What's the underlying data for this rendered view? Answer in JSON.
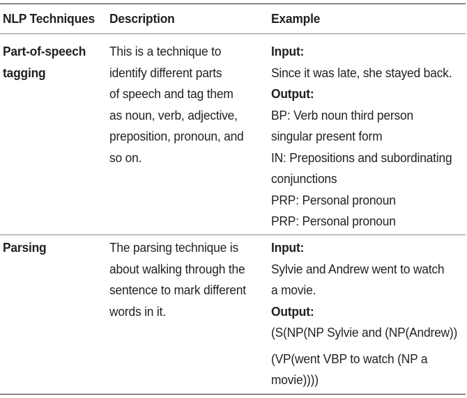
{
  "headers": {
    "technique": "NLP Techniques",
    "description": "Description",
    "example": "Example"
  },
  "rows": [
    {
      "technique": [
        "Part-of-speech",
        "tagging"
      ],
      "description": [
        "This is a technique to",
        "identify different parts",
        "of speech and tag them",
        "as noun, verb, adjective,",
        "preposition, pronoun, and",
        "so on."
      ],
      "input_label": "Input:",
      "input": [
        "Since it was late, she stayed back."
      ],
      "output_label": "Output:",
      "output": [
        "BP: Verb noun third person",
        "singular present form",
        "IN: Prepositions and subordinating",
        "conjunctions",
        "PRP: Personal pronoun",
        "PRP: Personal pronoun"
      ]
    },
    {
      "technique": [
        "Parsing"
      ],
      "description": [
        "The parsing technique is",
        "about walking through the",
        "sentence to mark different",
        "words in it."
      ],
      "input_label": "Input:",
      "input": [
        "Sylvie and Andrew went to watch",
        "a movie."
      ],
      "output_label": "Output:",
      "output": [
        "(S(NP(NP Sylvie and (NP(Andrew))",
        "(VP(went VBP to watch (NP a",
        "movie))))"
      ]
    }
  ]
}
